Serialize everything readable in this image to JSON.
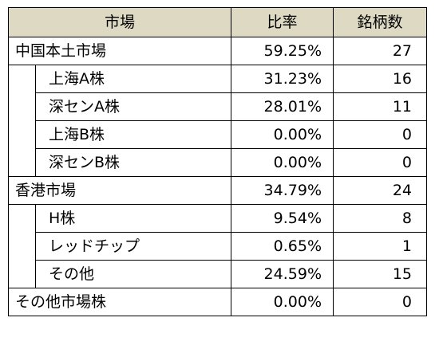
{
  "table": {
    "headers": {
      "market": "市場",
      "ratio": "比率",
      "count": "銘柄数"
    },
    "rows": [
      {
        "name": "中国本土市場",
        "level": 0,
        "ratio": "59.25%",
        "count": "27"
      },
      {
        "name": "上海A株",
        "level": 1,
        "ratio": "31.23%",
        "count": "16"
      },
      {
        "name": "深センA株",
        "level": 1,
        "ratio": "28.01%",
        "count": "11"
      },
      {
        "name": "上海B株",
        "level": 1,
        "ratio": "0.00%",
        "count": "0"
      },
      {
        "name": "深センB株",
        "level": 1,
        "ratio": "0.00%",
        "count": "0"
      },
      {
        "name": "香港市場",
        "level": 0,
        "ratio": "34.79%",
        "count": "24"
      },
      {
        "name": "H株",
        "level": 1,
        "ratio": "9.54%",
        "count": "8"
      },
      {
        "name": "レッドチップ",
        "level": 1,
        "ratio": "0.65%",
        "count": "1"
      },
      {
        "name": "その他",
        "level": 1,
        "ratio": "24.59%",
        "count": "15"
      },
      {
        "name": "その他市場株",
        "level": 0,
        "ratio": "0.00%",
        "count": "0"
      }
    ]
  }
}
